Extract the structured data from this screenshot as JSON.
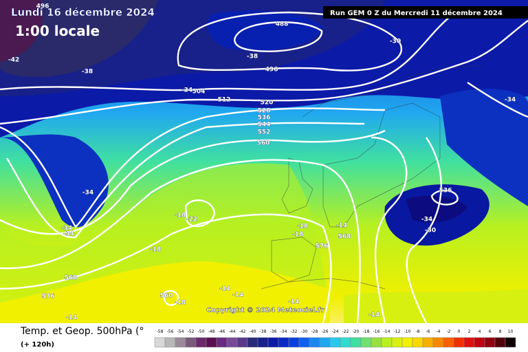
{
  "map": {
    "date": "Lundi 16 décembre 2024",
    "time": "1:00 locale",
    "run": "Run GEM 0 Z du Mercredi 11 décembre 2024",
    "copyright": "Copyright © 2024 Meteociel.fr",
    "contour_labels": [
      "496",
      "-42",
      "-38",
      "488",
      "-38",
      "496",
      "-30",
      "-34",
      "504",
      "512",
      "520",
      "528",
      "536",
      "544",
      "552",
      "560",
      "-34",
      "-34",
      "-34",
      "-34",
      "-18",
      "-22",
      "-18",
      "-18",
      "-18",
      "-14",
      "576",
      "-14",
      "568",
      "536",
      "-34",
      "-30",
      "568",
      "576",
      "-14",
      "560",
      "-18",
      "-14",
      "-14",
      "-14"
    ]
  },
  "legend": {
    "title": "Temp. et Geop. 500hPa (°",
    "subtitle": "(+ 120h)",
    "scale": [
      -58,
      -56,
      -54,
      -52,
      -50,
      -48,
      -46,
      -44,
      -42,
      -40,
      -38,
      -36,
      -34,
      -32,
      -30,
      -28,
      -26,
      -24,
      -22,
      -20,
      -18,
      -16,
      -14,
      -12,
      -10,
      -8,
      -6,
      -4,
      -2,
      0,
      2,
      4,
      6,
      8,
      10
    ],
    "colors": [
      "#d8d8d8",
      "#b8b8b8",
      "#9a8a9a",
      "#7a5a7a",
      "#6a2a6a",
      "#5a1050",
      "#6a2a80",
      "#7a4a9a",
      "#5a3a8a",
      "#2a2a7a",
      "#18208a",
      "#0c1aa8",
      "#0828c8",
      "#0a40e0",
      "#1060f0",
      "#1a88f0",
      "#20a8f0",
      "#28c8f0",
      "#30dcd0",
      "#40e0a0",
      "#70e070",
      "#98e040",
      "#b8f020",
      "#d8f010",
      "#f0f000",
      "#f8d800",
      "#f8b000",
      "#f88800",
      "#f86000",
      "#f03000",
      "#e01010",
      "#c00010",
      "#900010",
      "#500008",
      "#100000"
    ]
  }
}
